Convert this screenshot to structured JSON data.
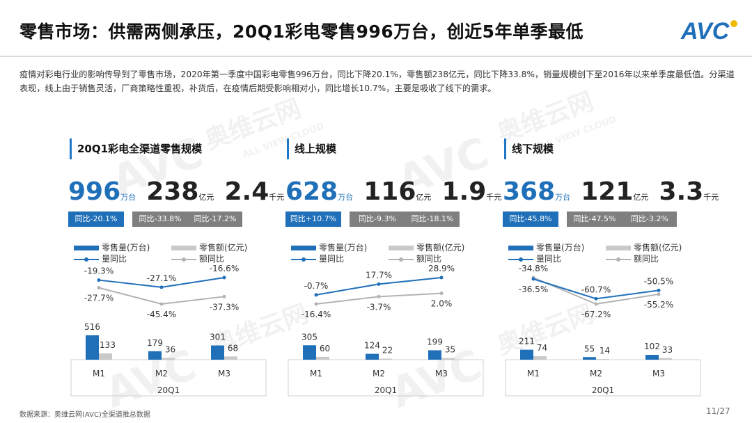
{
  "title": "零售市场：供需两侧承压，20Q1彩电零售996万台，创近5年单季最低",
  "logo_text": "AVC",
  "intro": "疫情对彩电行业的影响传导到了零售市场，2020年第一季度中国彩电零售996万台，同比下降20.1%，零售额238亿元，同比下降33.8%，销量规模创下至2016年以来单季度最低值。分渠道表现，线上由于销售灵活，厂商策略性重视，补货后，在疫情后期受影响相对小，同比增长10.7%，主要是吸收了线下的需求。",
  "watermark": {
    "brand": "奥维云网",
    "sub": "ALL VIEW CLOUD",
    "logo": "AVC"
  },
  "colors": {
    "accent_blue": "#1f6fb9",
    "grey": "#7f7f7f",
    "bar_grey": "#c9c9c9",
    "line_grey": "#b3b3b3"
  },
  "legend": {
    "vol": "零售量(万台)",
    "amt": "零售额(亿元)",
    "vol_yoy": "量同比",
    "amt_yoy": "额同比"
  },
  "panels": [
    {
      "title": "20Q1彩电全渠道零售规模",
      "kpi": [
        {
          "value": "996",
          "unit": "万台"
        },
        {
          "value": "238",
          "unit": "亿元"
        },
        {
          "value": "2.4",
          "unit": "千元"
        }
      ],
      "badges": [
        "同比-20.1%",
        "同比-33.8%",
        "同比-17.2%"
      ]
    },
    {
      "title": "线上规模",
      "kpi": [
        {
          "value": "628",
          "unit": "万台"
        },
        {
          "value": "116",
          "unit": "亿元"
        },
        {
          "value": "1.9",
          "unit": "千元"
        }
      ],
      "badges": [
        "同比+10.7%",
        "同比-9.3%",
        "同比-18.1%"
      ]
    },
    {
      "title": "线下规模",
      "kpi": [
        {
          "value": "368",
          "unit": "万台"
        },
        {
          "value": "121",
          "unit": "亿元"
        },
        {
          "value": "3.3",
          "unit": "千元"
        }
      ],
      "badges": [
        "同比-45.8%",
        "同比-47.5%",
        "同比-3.2%"
      ]
    }
  ],
  "chart_data": [
    {
      "type": "bar",
      "categories": [
        "M1",
        "M2",
        "M3"
      ],
      "group_label": "20Q1",
      "series": [
        {
          "name": "零售量(万台)",
          "type": "bar",
          "values": [
            516,
            179,
            301
          ],
          "labels": [
            "516",
            "179",
            "301"
          ]
        },
        {
          "name": "零售额(亿元)",
          "type": "bar",
          "values": [
            133,
            36,
            68
          ],
          "labels": [
            "133",
            "36",
            "68"
          ]
        },
        {
          "name": "量同比",
          "type": "line",
          "values": [
            -19.3,
            -27.1,
            -16.6
          ],
          "labels": [
            "-19.3%",
            "-27.1%",
            "-16.6%"
          ]
        },
        {
          "name": "额同比",
          "type": "line",
          "values": [
            -27.7,
            -45.4,
            -37.3
          ],
          "labels": [
            "-27.7%",
            "-45.4%",
            "-37.3%"
          ]
        }
      ]
    },
    {
      "type": "bar",
      "categories": [
        "M1",
        "M2",
        "M3"
      ],
      "group_label": "20Q1",
      "series": [
        {
          "name": "零售量(万台)",
          "type": "bar",
          "values": [
            305,
            124,
            199
          ],
          "labels": [
            "305",
            "124",
            "199"
          ]
        },
        {
          "name": "零售额(亿元)",
          "type": "bar",
          "values": [
            60,
            22,
            35
          ],
          "labels": [
            "60",
            "22",
            "35"
          ]
        },
        {
          "name": "量同比",
          "type": "line",
          "values": [
            -0.7,
            17.7,
            28.9
          ],
          "labels": [
            "-0.7%",
            "17.7%",
            "28.9%"
          ]
        },
        {
          "name": "额同比",
          "type": "line",
          "values": [
            -16.4,
            -3.7,
            2.0
          ],
          "labels": [
            "-16.4%",
            "-3.7%",
            "2.0%"
          ]
        }
      ]
    },
    {
      "type": "bar",
      "categories": [
        "M1",
        "M2",
        "M3"
      ],
      "group_label": "20Q1",
      "series": [
        {
          "name": "零售量(万台)",
          "type": "bar",
          "values": [
            211,
            55,
            102
          ],
          "labels": [
            "211",
            "55",
            "102"
          ]
        },
        {
          "name": "零售额(亿元)",
          "type": "bar",
          "values": [
            74,
            14,
            33
          ],
          "labels": [
            "74",
            "14",
            "33"
          ]
        },
        {
          "name": "量同比",
          "type": "line",
          "values": [
            -36.5,
            -60.7,
            -50.5
          ],
          "labels": [
            "-36.5%",
            "-60.7%",
            "-50.5%"
          ]
        },
        {
          "name": "额同比",
          "type": "line",
          "values": [
            -34.8,
            -67.2,
            -55.2
          ],
          "labels": [
            "-34.8%",
            "-67.2%",
            "-55.2%"
          ]
        }
      ]
    }
  ],
  "footer": "数据来源：奥维云网(AVC)全渠道推总数据",
  "page": "11/27"
}
